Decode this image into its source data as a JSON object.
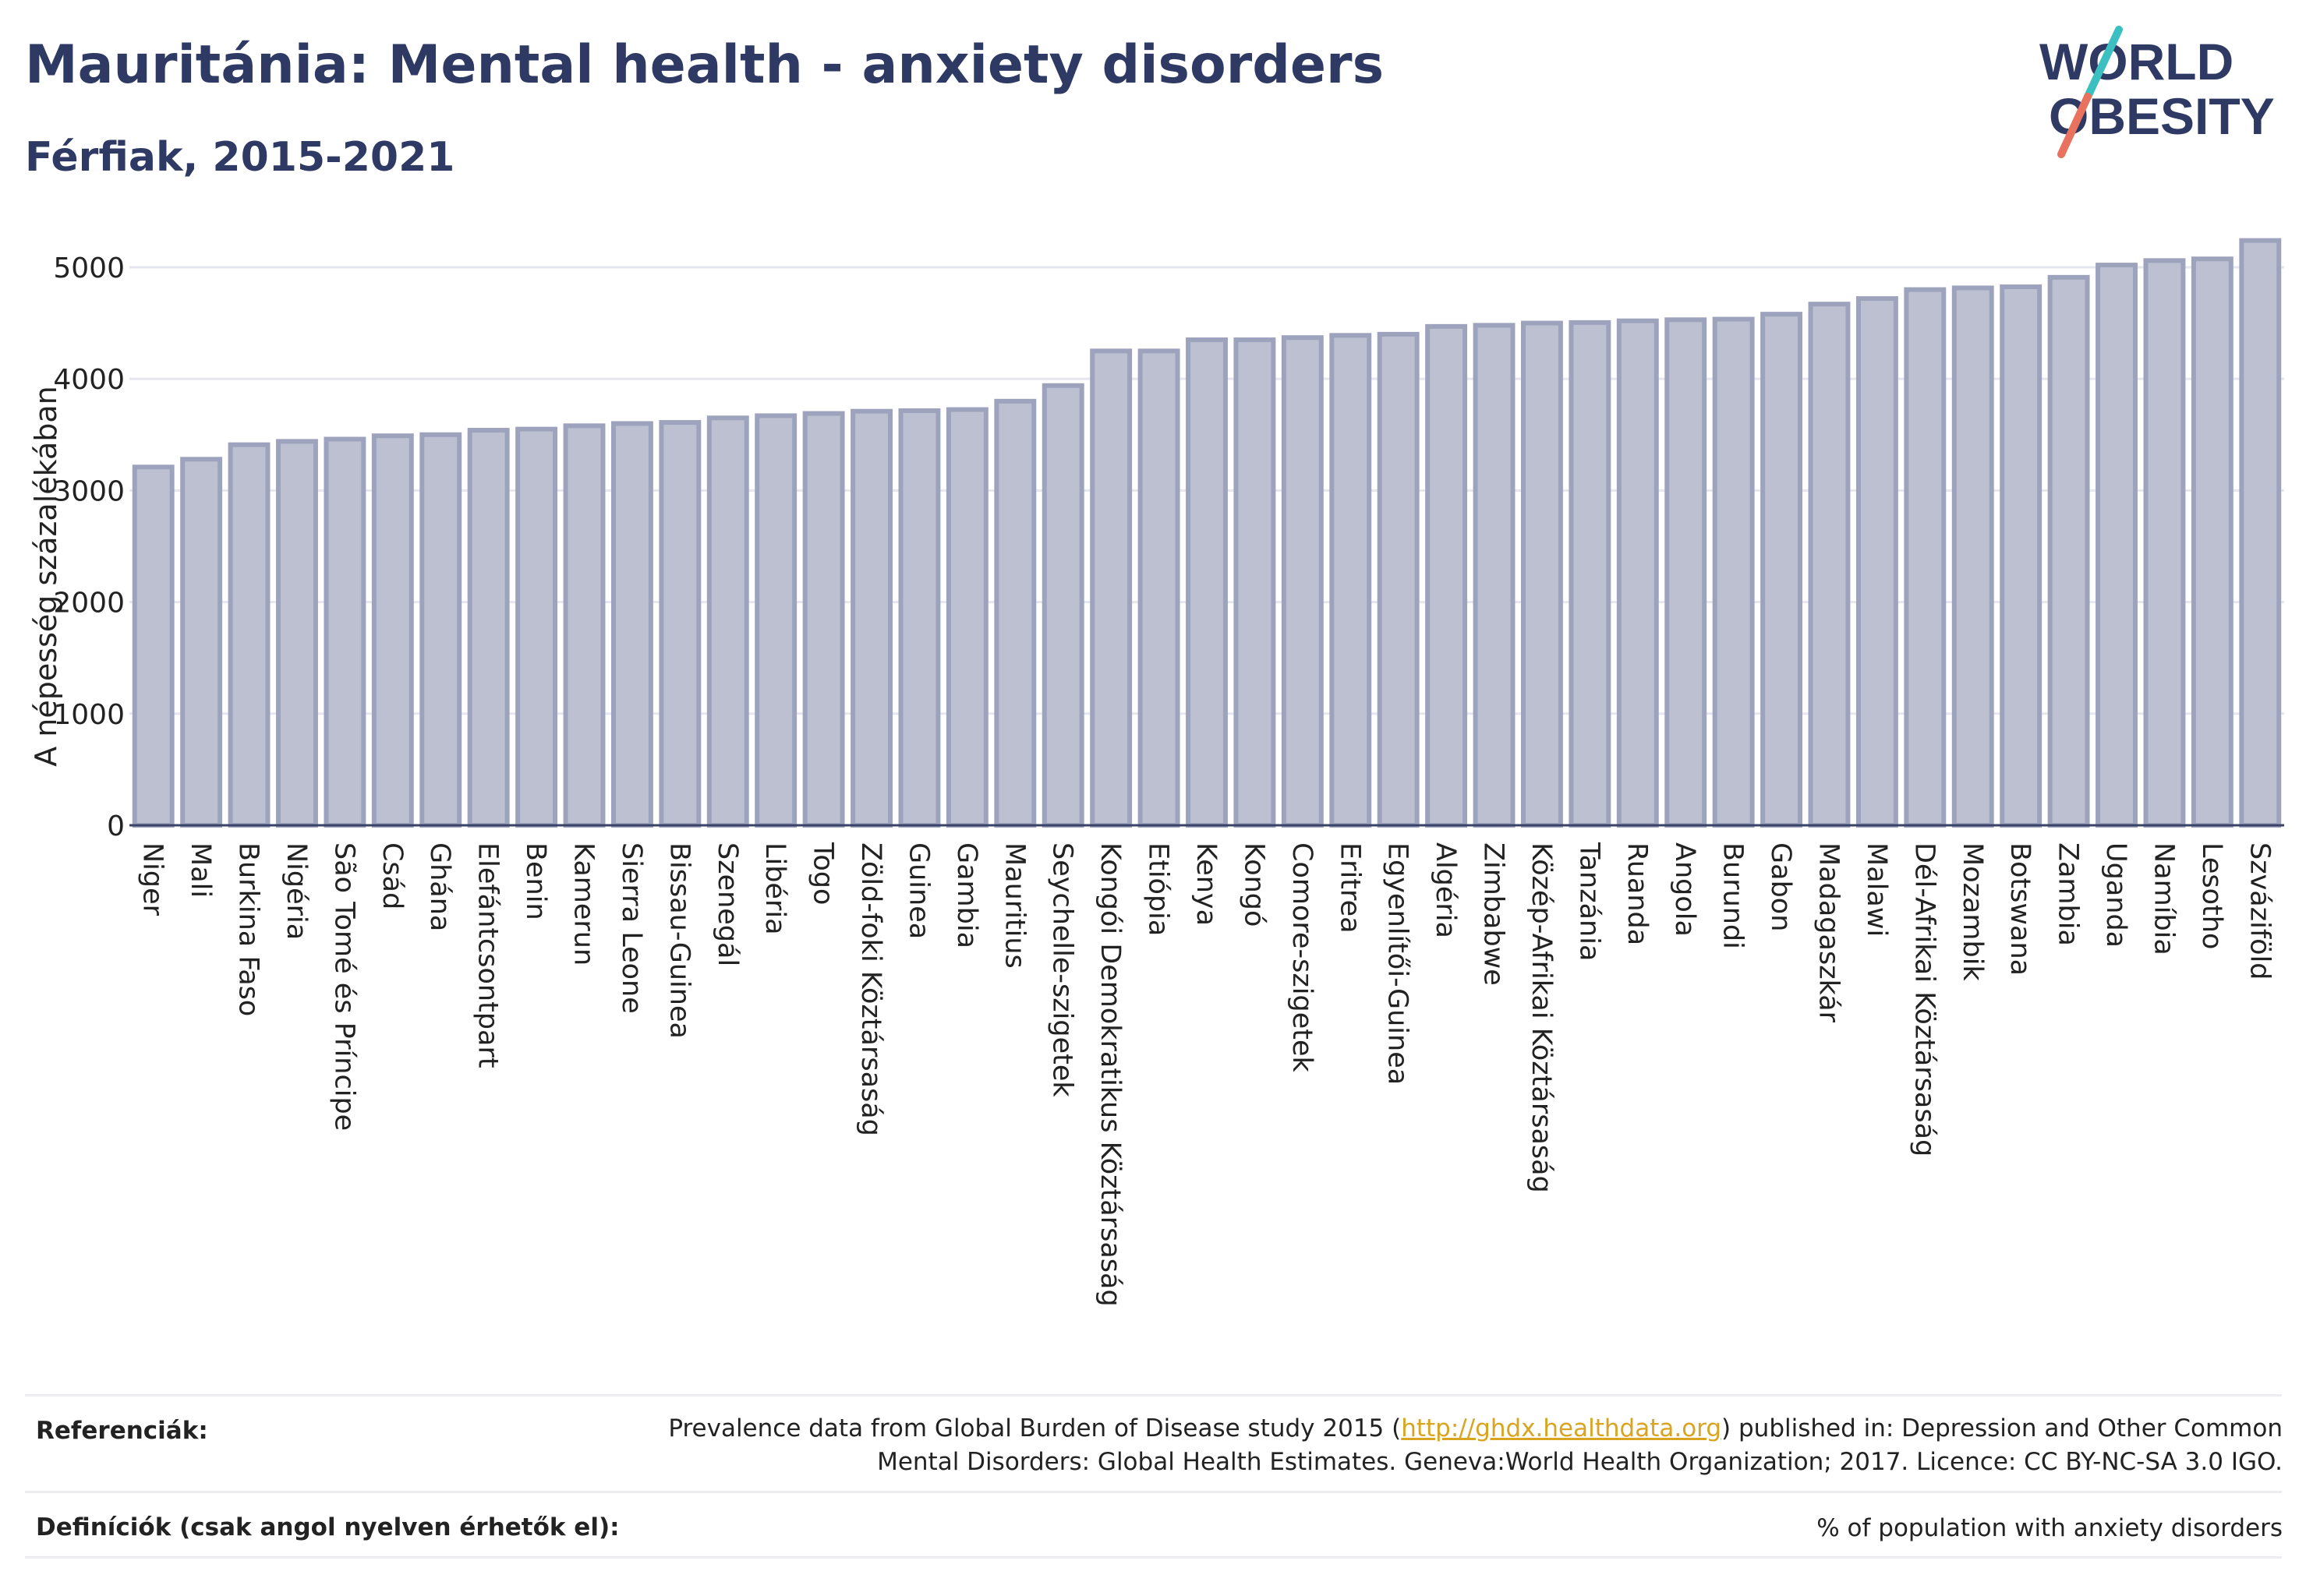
{
  "header": {
    "title": "Mauritánia: Mental health - anxiety disorders",
    "subtitle": "Férfiak, 2015-2021"
  },
  "logo": {
    "line1": "WORLD",
    "line2": "OBESITY",
    "colors": {
      "text": "#2e3a64",
      "slash_top": "#3bbfc0",
      "slash_bottom": "#e8725e"
    }
  },
  "chart_data": {
    "type": "bar",
    "ylabel": "A népesség százalékában",
    "ylim": [
      0,
      5300
    ],
    "yticks": [
      0,
      1000,
      2000,
      3000,
      4000,
      5000
    ],
    "grid": true,
    "bar_color": "#bcc0d0",
    "bar_edge_color": "#9ea3bd",
    "categories": [
      "Niger",
      "Mali",
      "Burkina Faso",
      "Nigéria",
      "São Tomé és Príncipe",
      "Csád",
      "Ghána",
      "Elefántcsontpart",
      "Benin",
      "Kamerun",
      "Sierra Leone",
      "Bissau-Guinea",
      "Szenegál",
      "Libéria",
      "Togo",
      "Zöld-foki Köztársaság",
      "Guinea",
      "Gambia",
      "Mauritius",
      "Seychelle-szigetek",
      "Kongói Demokratikus Köztársaság",
      "Etiópia",
      "Kenya",
      "Kongó",
      "Comore-szigetek",
      "Eritrea",
      "Egyenlítői-Guinea",
      "Algéria",
      "Zimbabwe",
      "Közép-Afrikai Köztársaság",
      "Tanzánia",
      "Ruanda",
      "Angola",
      "Burundi",
      "Gabon",
      "Madagaszkár",
      "Malawi",
      "Dél-Afrikai Köztársaság",
      "Mozambik",
      "Botswana",
      "Zambia",
      "Uganda",
      "Namíbia",
      "Lesotho",
      "Szváziföld"
    ],
    "values": [
      3210,
      3280,
      3410,
      3440,
      3460,
      3490,
      3500,
      3540,
      3550,
      3580,
      3600,
      3610,
      3650,
      3670,
      3690,
      3710,
      3715,
      3725,
      3800,
      3940,
      4250,
      4250,
      4350,
      4350,
      4370,
      4390,
      4400,
      4470,
      4480,
      4500,
      4505,
      4520,
      4530,
      4535,
      4580,
      4670,
      4720,
      4800,
      4815,
      4825,
      4910,
      5020,
      5060,
      5075,
      5240
    ]
  },
  "footer": {
    "references_label": "Referenciák:",
    "references_pre": "Prevalence data from Global Burden of Disease study 2015 (",
    "references_link": "http://ghdx.healthdata.org",
    "references_post": ") published in: Depression and Other Common",
    "references_line2": "Mental Disorders: Global Health Estimates. Geneva:World Health Organization; 2017. Licence: CC BY-NC-SA 3.0 IGO.",
    "definitions_label": "Definíciók (csak angol nyelven érhetők el):",
    "definitions_text": "% of population with anxiety disorders"
  }
}
